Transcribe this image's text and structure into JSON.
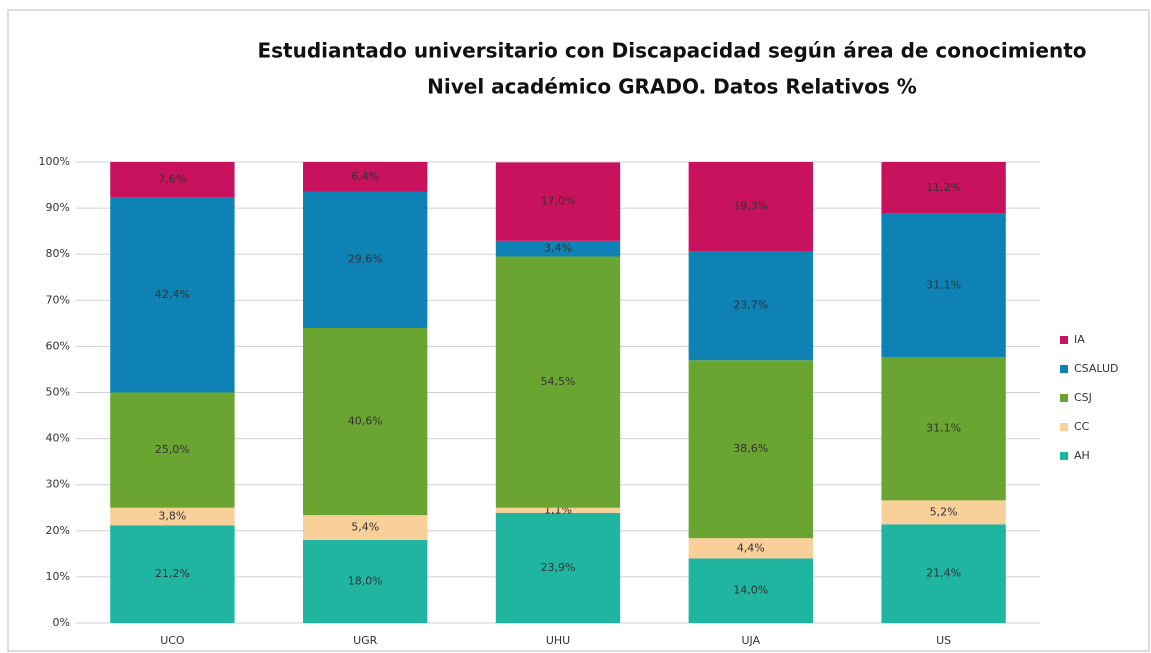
{
  "chart_data": {
    "type": "stacked_bar",
    "title": "Estudiantado universitario con Discapacidad según área de conocimiento",
    "subtitle": "Nivel académico GRADO.  Datos Relativos %",
    "categories": [
      "UCO",
      "UGR",
      "UHU",
      "UJA",
      "US"
    ],
    "series": [
      {
        "name": "AH",
        "color": "#1fb5a0",
        "values": [
          21.2,
          18.0,
          23.9,
          14.0,
          21.4
        ],
        "value_labels": [
          "21,2%",
          "18,0%",
          "23,9%",
          "14,0%",
          "21,4%"
        ]
      },
      {
        "name": "CC",
        "color": "#f9d09a",
        "values": [
          3.8,
          5.4,
          1.1,
          4.4,
          5.2
        ],
        "value_labels": [
          "3,8%",
          "5,4%",
          "1,1%",
          "4,4%",
          "5,2%"
        ]
      },
      {
        "name": "CSJ",
        "color": "#6aa532",
        "values": [
          25.0,
          40.6,
          54.5,
          38.6,
          31.1
        ],
        "value_labels": [
          "25,0%",
          "40,6%",
          "54,5%",
          "38,6%",
          "31,1%"
        ]
      },
      {
        "name": "CSALUD",
        "color": "#0e82b4",
        "values": [
          42.4,
          29.6,
          3.4,
          23.7,
          31.1
        ],
        "value_labels": [
          "42,4%",
          "29,6%",
          "3,4%",
          "23,7%",
          "31,1%"
        ]
      },
      {
        "name": "IA",
        "color": "#c8125e",
        "values": [
          7.6,
          6.4,
          17.0,
          19.3,
          11.2
        ],
        "value_labels": [
          "7,6%",
          "6,4%",
          "17,0%",
          "19,3%",
          "11,2%"
        ]
      }
    ],
    "ylim": [
      0,
      100
    ],
    "yticks": [
      {
        "value": 0,
        "label": "0%"
      },
      {
        "value": 10,
        "label": "10%"
      },
      {
        "value": 20,
        "label": "20%"
      },
      {
        "value": 30,
        "label": "30%"
      },
      {
        "value": 40,
        "label": "40%"
      },
      {
        "value": 50,
        "label": "50%"
      },
      {
        "value": 60,
        "label": "60%"
      },
      {
        "value": 70,
        "label": "70%"
      },
      {
        "value": 80,
        "label": "80%"
      },
      {
        "value": 90,
        "label": "90%"
      },
      {
        "value": 100,
        "label": "100%"
      }
    ],
    "grid": true,
    "legend": "right"
  }
}
